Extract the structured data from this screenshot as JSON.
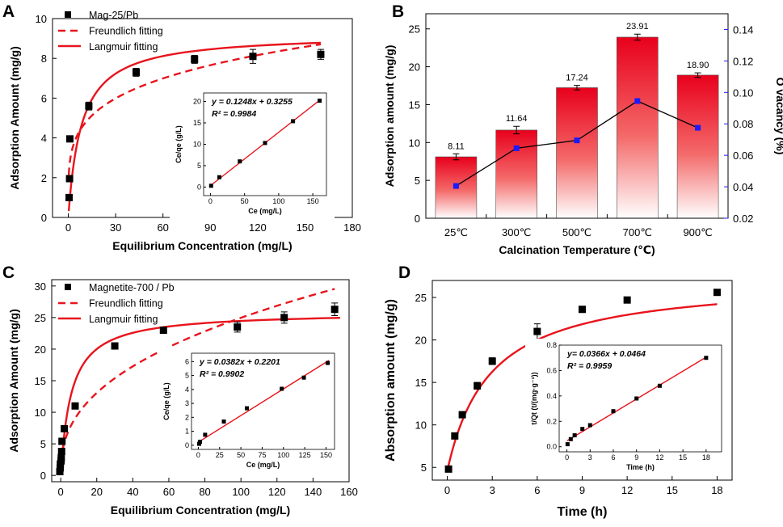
{
  "chart_data": [
    {
      "panel": "A",
      "type": "scatter",
      "xlabel": "Equilibrium Concentration (mg/L)",
      "ylabel": "Adsorption Amount (mg/g)",
      "xlim": [
        -10,
        180
      ],
      "ylim": [
        0,
        10
      ],
      "xticks": [
        "0",
        "30",
        "60",
        "90",
        "120",
        "150",
        "180"
      ],
      "yticks": [
        "0",
        "2",
        "4",
        "6",
        "8",
        "10"
      ],
      "legend": [
        "Mag-25/Pb",
        "Freundlich fitting",
        "Langmuir fitting"
      ],
      "series": [
        {
          "name": "Mag-25/Pb",
          "kind": "points",
          "x": [
            0.5,
            0.8,
            1.0,
            13,
            43,
            80,
            117,
            160
          ],
          "y": [
            1.0,
            1.95,
            3.95,
            5.6,
            7.3,
            7.95,
            8.1,
            8.2
          ],
          "err": [
            0,
            0,
            0,
            0.2,
            0.2,
            0.2,
            0.35,
            0.25
          ]
        },
        {
          "name": "Freundlich fitting",
          "kind": "freundlich",
          "k": 2.8,
          "n": 0.2235,
          "xmin": 0.3,
          "xmax": 160
        },
        {
          "name": "Langmuir fitting",
          "kind": "langmuir",
          "qm": 9.24,
          "kl": 0.12,
          "xmin": 0.3,
          "xmax": 160
        }
      ],
      "inset": {
        "xlabel": "Ce (mg/L)",
        "ylabel": "Ce/qe (g/L)",
        "xlim": [
          -10,
          170
        ],
        "ylim": [
          -2,
          22
        ],
        "xticks": [
          "0",
          "50",
          "100",
          "150"
        ],
        "yticks": [
          "0",
          "5",
          "10",
          "15",
          "20"
        ],
        "equation": "y = 0.1248x + 0.3255",
        "r2": "R² = 0.9984",
        "x": [
          1,
          13,
          43,
          80,
          121,
          160
        ],
        "y": [
          0.3,
          2.3,
          6.0,
          10.3,
          15.4,
          20.2
        ],
        "slope": 0.1248,
        "intercept": 0.3255
      }
    },
    {
      "panel": "B",
      "type": "bar",
      "xlabel": "Calcination Temperature (℃)",
      "ylabel": "Adsorption amount (mg/g)",
      "y2label": "O vacancy  (%)",
      "categories": [
        "25℃",
        "300℃",
        "500℃",
        "700℃",
        "900℃"
      ],
      "values": [
        8.11,
        11.64,
        17.24,
        23.91,
        18.9
      ],
      "value_labels": [
        "8.11",
        "11.64",
        "17.24",
        "23.91",
        "18.90"
      ],
      "errors": [
        0.4,
        0.5,
        0.3,
        0.4,
        0.3
      ],
      "ylim": [
        0,
        27
      ],
      "yticks": [
        "0",
        "5",
        "10",
        "15",
        "20",
        "25"
      ],
      "y2lim": [
        0.02,
        0.15
      ],
      "y2ticks": [
        "0.02",
        "0.04",
        "0.06",
        "0.08",
        "0.10",
        "0.12",
        "0.14"
      ],
      "o_vacancy": [
        0.0405,
        0.0645,
        0.0695,
        0.0945,
        0.0775
      ]
    },
    {
      "panel": "C",
      "type": "scatter",
      "xlabel": "Equilibrium Concentration (mg/L)",
      "ylabel": "Adsorption Amount (mg/g)",
      "xlim": [
        -5,
        160
      ],
      "ylim": [
        -1,
        31
      ],
      "xticks": [
        "0",
        "20",
        "40",
        "60",
        "80",
        "100",
        "120",
        "140",
        "160"
      ],
      "yticks": [
        "0",
        "5",
        "10",
        "15",
        "20",
        "25",
        "30"
      ],
      "legend": [
        "Magnetite-700 / Pb",
        "Freundlich fitting",
        "Langmuir fitting"
      ],
      "series": [
        {
          "name": "Magnetite-700 / Pb",
          "kind": "points",
          "x": [
            -0.5,
            -0.3,
            -0.2,
            0.2,
            0.3,
            0.5,
            0.7,
            2,
            8,
            30,
            57,
            98,
            124,
            152
          ],
          "y": [
            0.6,
            1.2,
            1.8,
            2.3,
            2.8,
            3.8,
            5.4,
            7.4,
            11.0,
            20.5,
            23.0,
            23.5,
            25.0,
            26.3
          ],
          "err": [
            0,
            0,
            0,
            0,
            0,
            0,
            0,
            0,
            0.3,
            0.5,
            0.5,
            0.8,
            0.9,
            1.0
          ]
        },
        {
          "name": "Freundlich fitting",
          "kind": "freundlich",
          "k": 3.92,
          "n": 0.402,
          "xmin": 0.2,
          "xmax": 152
        },
        {
          "name": "Langmuir fitting",
          "kind": "langmuir",
          "qm": 25.9,
          "kl": 0.17,
          "xmin": 0.05,
          "xmax": 155
        }
      ],
      "inset": {
        "xlabel": "Ce (mg/L)",
        "ylabel": "Ce/qe (g/L)",
        "xlim": [
          -8,
          160
        ],
        "ylim": [
          -0.3,
          6.6
        ],
        "xticks": [
          "0",
          "25",
          "50",
          "75",
          "100",
          "125",
          "150"
        ],
        "yticks": [
          "0",
          "1",
          "2",
          "3",
          "4",
          "5",
          "6"
        ],
        "equation": "y = 0.0382x + 0.2201",
        "r2": "R² = 0.9902",
        "x": [
          1,
          2,
          8,
          30,
          57,
          98,
          124,
          152
        ],
        "y": [
          0.1,
          0.25,
          0.75,
          1.7,
          2.65,
          4.05,
          4.85,
          5.9
        ],
        "slope": 0.0382,
        "intercept": 0.2201
      }
    },
    {
      "panel": "D",
      "type": "scatter",
      "xlabel": "Time (h)",
      "ylabel": "Absorption amount (mg/g)",
      "xlim": [
        -1,
        19
      ],
      "ylim": [
        3.5,
        27
      ],
      "xticks": [
        "0",
        "3",
        "6",
        "9",
        "12",
        "15",
        "18"
      ],
      "yticks": [
        "5",
        "10",
        "15",
        "20",
        "25"
      ],
      "series": [
        {
          "name": "data",
          "kind": "points",
          "x": [
            0.083,
            0.5,
            1,
            2,
            3,
            6,
            9,
            12,
            18
          ],
          "y": [
            4.8,
            8.7,
            11.2,
            14.6,
            17.5,
            21.0,
            23.6,
            24.7,
            25.6
          ],
          "err": [
            0.1,
            0.2,
            0.3,
            0.4,
            0.4,
            0.9,
            0.3,
            0.3,
            0.1
          ]
        },
        {
          "name": "fit",
          "kind": "pso",
          "qe": 27.3,
          "k2": 0.0155,
          "q0": 4.6,
          "xmin": 0,
          "xmax": 18
        }
      ],
      "inset": {
        "xlabel": "Time (h)",
        "ylabel": "t/Qt (t/(mg·g⁻¹))",
        "xlim": [
          -1,
          20
        ],
        "ylim": [
          -0.04,
          0.8
        ],
        "xticks": [
          "0",
          "3",
          "6",
          "9",
          "12",
          "15",
          "18"
        ],
        "yticks": [
          "0.0",
          "0.2",
          "0.4",
          "0.6",
          "0.8"
        ],
        "equation": "y= 0.0366x + 0.0464",
        "r2": "R² = 0.9959",
        "x": [
          0.083,
          0.5,
          1,
          2,
          3,
          6,
          9,
          12,
          18
        ],
        "y": [
          0.02,
          0.06,
          0.09,
          0.14,
          0.17,
          0.28,
          0.38,
          0.48,
          0.7
        ],
        "slope": 0.0366,
        "intercept": 0.0464
      }
    }
  ]
}
